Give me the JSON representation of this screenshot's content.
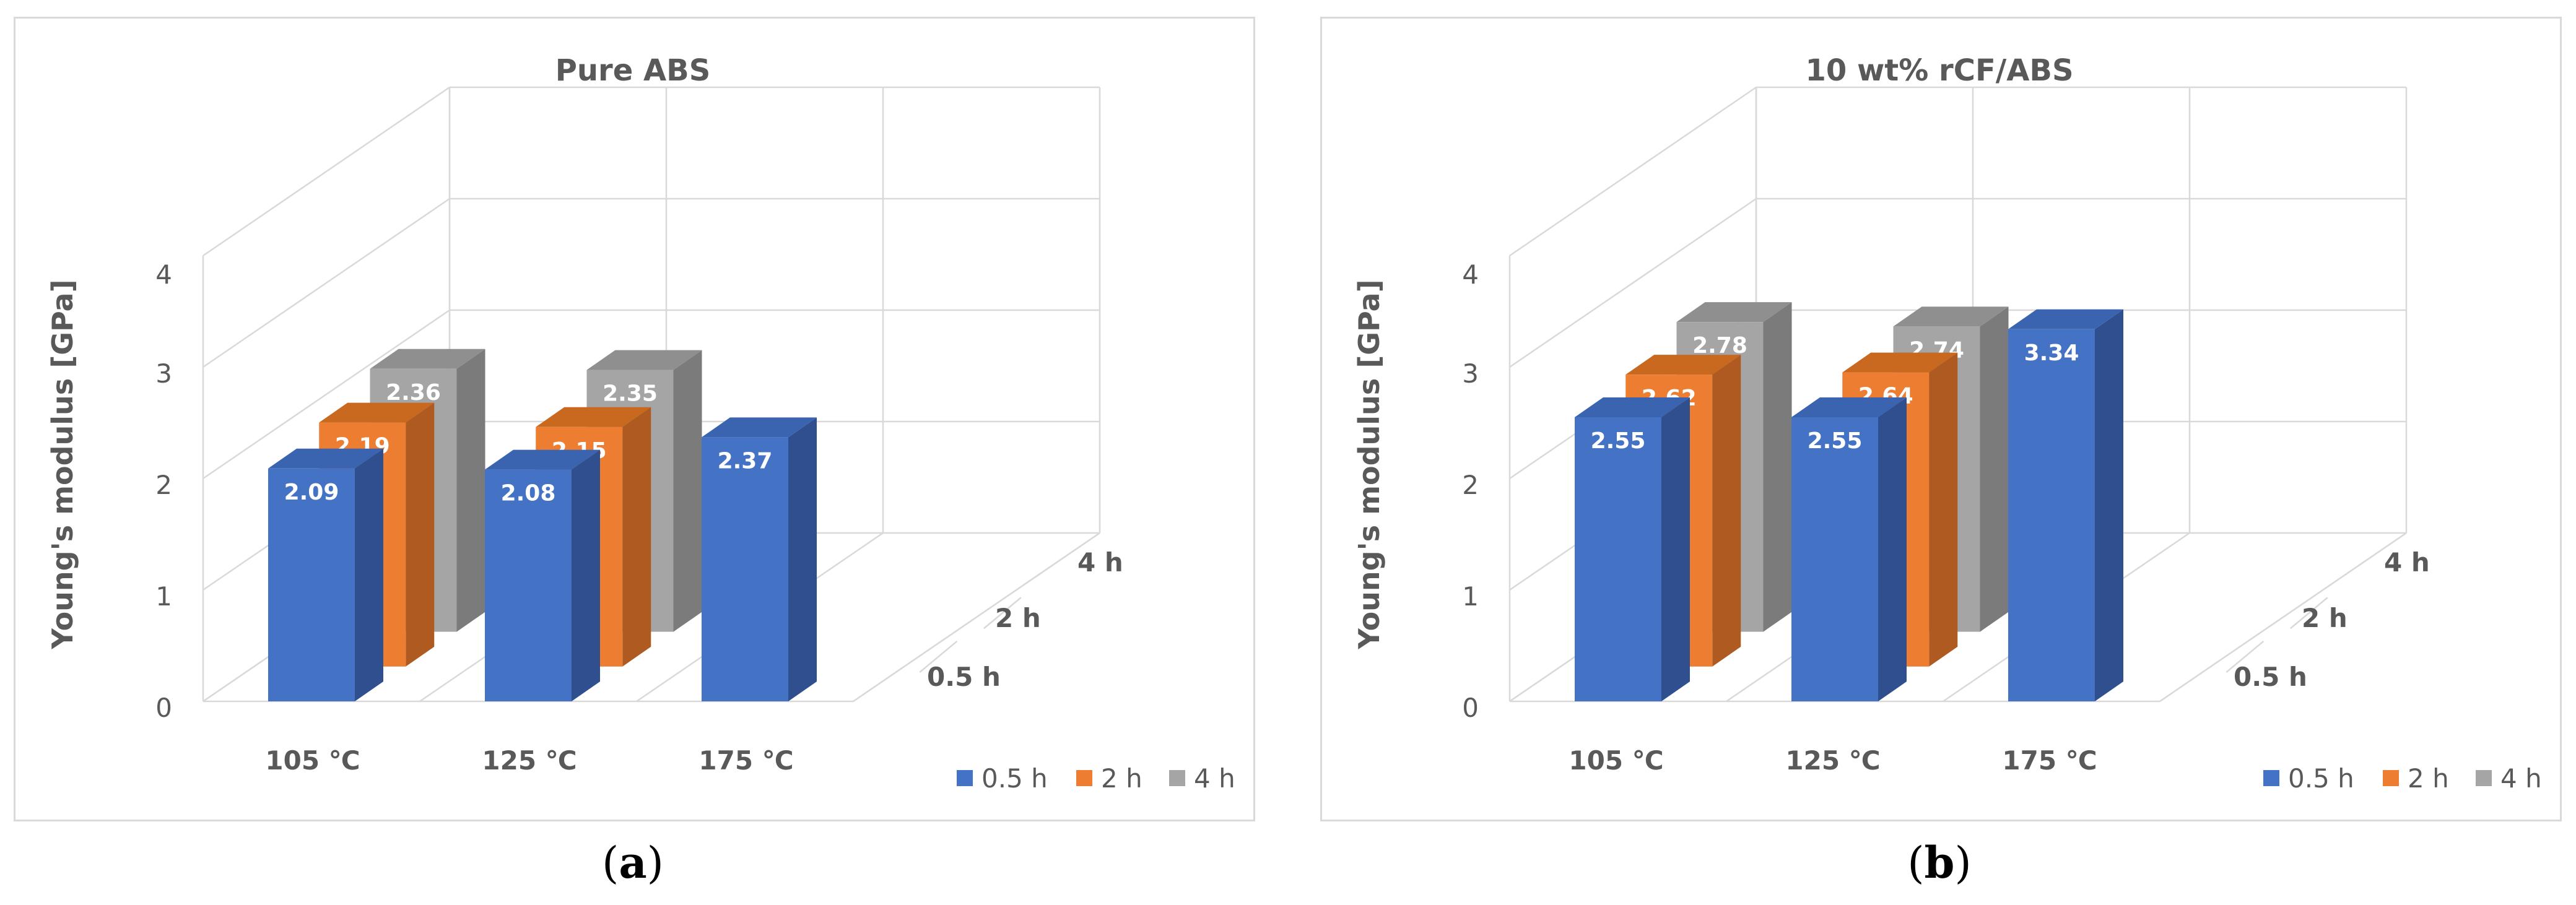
{
  "chart_data": [
    {
      "type": "bar",
      "title": "Pure ABS",
      "ylabel": "Young's modulus [GPa]",
      "xlabel": "",
      "ylim": [
        0,
        4
      ],
      "yticks": [
        "0",
        "1",
        "2",
        "3",
        "4"
      ],
      "categories": [
        "105 ℃",
        "125 ℃",
        "175 ℃"
      ],
      "series": [
        {
          "name": "0.5 h",
          "values": [
            2.09,
            2.08,
            2.37
          ],
          "labels": [
            "2.09",
            "2.08",
            "2.37"
          ]
        },
        {
          "name": "2 h",
          "values": [
            2.19,
            2.15,
            null
          ],
          "labels": [
            "2.19",
            "2.15",
            ""
          ]
        },
        {
          "name": "4 h",
          "values": [
            2.36,
            2.35,
            null
          ],
          "labels": [
            "2.36",
            "2.35",
            ""
          ]
        }
      ],
      "depth_labels": [
        "0.5 h",
        "2 h",
        "4 h"
      ],
      "legend_position": "bottom-right",
      "caption": "a"
    },
    {
      "type": "bar",
      "title": "10 wt% rCF/ABS",
      "ylabel": "Young's modulus [GPa]",
      "xlabel": "",
      "ylim": [
        0,
        4
      ],
      "yticks": [
        "0",
        "1",
        "2",
        "3",
        "4"
      ],
      "categories": [
        "105 ℃",
        "125 ℃",
        "175 ℃"
      ],
      "series": [
        {
          "name": "0.5 h",
          "values": [
            2.55,
            2.55,
            3.34
          ],
          "labels": [
            "2.55",
            "2.55",
            "3.34"
          ]
        },
        {
          "name": "2 h",
          "values": [
            2.62,
            2.64,
            null
          ],
          "labels": [
            "2.62",
            "2.64",
            ""
          ]
        },
        {
          "name": "4 h",
          "values": [
            2.78,
            2.74,
            null
          ],
          "labels": [
            "2.78",
            "2.74",
            ""
          ]
        }
      ],
      "depth_labels": [
        "0.5 h",
        "2 h",
        "4 h"
      ],
      "legend_position": "bottom-right",
      "caption": "b"
    }
  ],
  "colors": {
    "series_front": [
      "#4472c4",
      "#ed7d31",
      "#a5a5a5"
    ],
    "series_side": [
      "#2f4f8f",
      "#ae5a21",
      "#7b7b7b"
    ],
    "series_top": [
      "#3a64b0",
      "#c9691f",
      "#8f8f8f"
    ],
    "grid": "#d9d9d9"
  }
}
